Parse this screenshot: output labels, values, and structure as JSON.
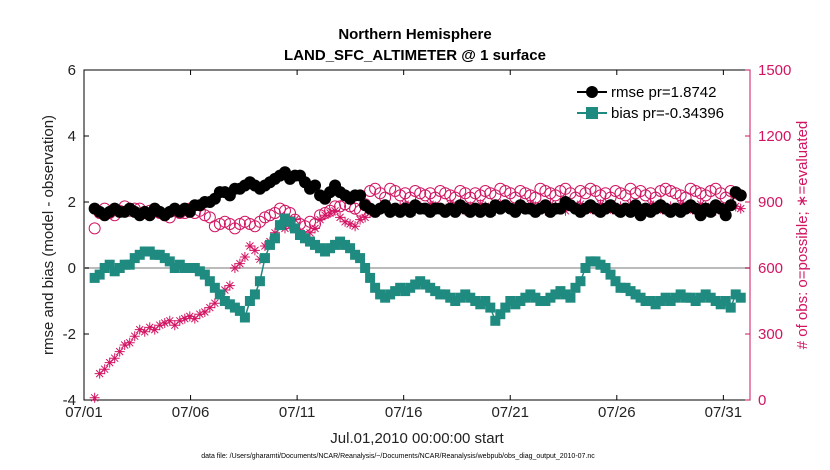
{
  "chart_data": {
    "type": "line",
    "title": [
      "Northern Hemisphere",
      "LAND_SFC_ALTIMETER @ 1 surface"
    ],
    "xlabel": "Jul.01,2010 00:00:00 start",
    "ylabel_left": "rmse and bias (model - observation)",
    "ylabel_right": "# of obs: o=possible; ∗=evaluated",
    "footnote": "data file: /Users/gharamti/Documents/NCAR/Reanalysis/~/Documents/NCAR/Reanalysis/webpub/obs_diag_output_2010-07.nc",
    "x_ticks": [
      "07/01",
      "07/06",
      "07/11",
      "07/16",
      "07/21",
      "07/26",
      "07/31"
    ],
    "x_tick_days": [
      0,
      5,
      10,
      15,
      20,
      25,
      30
    ],
    "xlim_days": [
      0,
      31.25
    ],
    "ylim_left": [
      -4,
      6
    ],
    "y_ticks_left": [
      "-4",
      "-2",
      "0",
      "2",
      "4",
      "6"
    ],
    "ylim_right": [
      0,
      1500
    ],
    "y_ticks_right": [
      "0",
      "300",
      "600",
      "900",
      "1200",
      "1500"
    ],
    "zero_line": 0,
    "grid": false,
    "legend_position": "top-right",
    "colors": {
      "rmse": "#000000",
      "bias": "#1f8a80",
      "counts": "#d21462",
      "zero": "#bbbbbb"
    },
    "series": [
      {
        "name": "rmse pr=1.8742",
        "axis": "left",
        "marker": "circle",
        "values": [
          1.8,
          1.7,
          1.6,
          1.7,
          1.8,
          1.7,
          1.7,
          1.8,
          1.7,
          1.6,
          1.7,
          1.6,
          1.8,
          1.7,
          1.6,
          1.7,
          1.8,
          1.7,
          1.8,
          1.7,
          1.9,
          1.9,
          2.0,
          2.0,
          2.1,
          2.3,
          2.3,
          2.2,
          2.4,
          2.4,
          2.5,
          2.6,
          2.5,
          2.4,
          2.5,
          2.6,
          2.7,
          2.8,
          2.9,
          2.7,
          2.8,
          2.8,
          2.6,
          2.4,
          2.5,
          2.2,
          2.1,
          2.3,
          2.5,
          2.3,
          2.2,
          2.1,
          2.2,
          2.2,
          1.9,
          1.8,
          1.7,
          1.8,
          1.9,
          1.7,
          1.8,
          1.7,
          1.8,
          1.7,
          1.9,
          1.8,
          1.8,
          1.7,
          1.8,
          1.8,
          1.7,
          1.8,
          1.7,
          1.9,
          1.8,
          1.7,
          1.8,
          1.7,
          1.8,
          1.7,
          1.9,
          1.8,
          1.9,
          1.8,
          1.7,
          1.9,
          1.8,
          1.8,
          1.7,
          1.8,
          1.9,
          1.7,
          1.8,
          1.8,
          2.0,
          1.9,
          1.8,
          1.7,
          1.8,
          1.9,
          1.8,
          1.7,
          1.8,
          1.9,
          1.8,
          1.7,
          1.8,
          1.7,
          1.9,
          1.6,
          1.8,
          1.7,
          1.8,
          1.9,
          1.8,
          1.7,
          1.8,
          1.7,
          1.8,
          1.9,
          1.8,
          1.6,
          1.8,
          1.7,
          1.9,
          1.8,
          1.6,
          1.9,
          2.3,
          2.2
        ]
      },
      {
        "name": "bias pr=-0.34396",
        "axis": "left",
        "marker": "square",
        "values": [
          -0.3,
          -0.2,
          0.0,
          0.1,
          -0.1,
          0.0,
          0.1,
          0.1,
          0.3,
          0.4,
          0.5,
          0.5,
          0.4,
          0.4,
          0.3,
          0.2,
          0.0,
          0.1,
          0.0,
          0.0,
          0.0,
          -0.1,
          -0.2,
          -0.4,
          -0.6,
          -0.8,
          -1.0,
          -1.1,
          -1.2,
          -1.3,
          -1.5,
          -1.0,
          -0.8,
          -0.4,
          0.3,
          0.7,
          0.9,
          1.3,
          1.5,
          1.4,
          1.2,
          1.0,
          0.9,
          0.8,
          0.7,
          0.6,
          0.5,
          0.6,
          0.7,
          0.8,
          0.7,
          0.6,
          0.4,
          0.3,
          0.0,
          -0.3,
          -0.6,
          -0.8,
          -0.9,
          -0.8,
          -0.7,
          -0.6,
          -0.7,
          -0.6,
          -0.5,
          -0.4,
          -0.5,
          -0.6,
          -0.7,
          -0.8,
          -0.8,
          -0.9,
          -1.0,
          -0.9,
          -0.8,
          -0.9,
          -1.0,
          -1.1,
          -1.0,
          -1.2,
          -1.6,
          -1.4,
          -1.2,
          -1.0,
          -1.1,
          -1.0,
          -0.9,
          -0.8,
          -0.9,
          -1.0,
          -1.0,
          -0.9,
          -0.8,
          -0.7,
          -0.8,
          -0.9,
          -0.6,
          -0.4,
          0.0,
          0.2,
          0.2,
          0.1,
          0.0,
          -0.2,
          -0.4,
          -0.6,
          -0.6,
          -0.7,
          -0.8,
          -0.9,
          -1.0,
          -1.0,
          -1.1,
          -1.0,
          -0.9,
          -1.0,
          -0.9,
          -0.8,
          -0.9,
          -0.9,
          -1.0,
          -0.9,
          -0.8,
          -0.9,
          -1.0,
          -1.1,
          -1.0,
          -1.2,
          -0.8,
          -0.9
        ]
      },
      {
        "name": "possible",
        "axis": "right",
        "marker": "open-circle",
        "values": [
          780,
          850,
          870,
          850,
          840,
          860,
          880,
          860,
          870,
          870,
          850,
          860,
          860,
          850,
          840,
          830,
          860,
          850,
          850,
          870,
          850,
          860,
          840,
          830,
          790,
          800,
          810,
          800,
          780,
          800,
          810,
          800,
          790,
          810,
          830,
          840,
          850,
          870,
          860,
          850,
          820,
          800,
          790,
          810,
          800,
          840,
          850,
          860,
          880,
          880,
          890,
          880,
          870,
          860,
          890,
          950,
          960,
          940,
          920,
          960,
          950,
          930,
          940,
          920,
          950,
          940,
          930,
          940,
          920,
          950,
          940,
          930,
          920,
          950,
          940,
          920,
          940,
          930,
          950,
          940,
          930,
          960,
          950,
          940,
          920,
          950,
          940,
          930,
          920,
          960,
          950,
          940,
          930,
          950,
          960,
          940,
          920,
          950,
          940,
          960,
          950,
          930,
          940,
          920,
          950,
          940,
          930,
          960,
          940,
          950,
          930,
          940,
          920,
          950,
          960,
          950,
          940,
          930,
          920,
          960,
          950,
          940,
          930,
          950,
          960,
          940,
          920,
          950,
          940,
          930
        ]
      },
      {
        "name": "evaluated",
        "axis": "right",
        "marker": "asterisk",
        "values": [
          10,
          120,
          140,
          170,
          190,
          220,
          250,
          260,
          290,
          320,
          310,
          330,
          320,
          340,
          350,
          360,
          340,
          360,
          370,
          380,
          370,
          390,
          400,
          420,
          440,
          480,
          500,
          520,
          600,
          620,
          650,
          700,
          680,
          640,
          700,
          720,
          760,
          800,
          780,
          790,
          820,
          760,
          740,
          760,
          780,
          820,
          840,
          850,
          860,
          830,
          810,
          800,
          790,
          820,
          830,
          850,
          860,
          870,
          880,
          870,
          860,
          880,
          890,
          870,
          860,
          880,
          870,
          890,
          880,
          870,
          860,
          890,
          880,
          870,
          860,
          880,
          870,
          890,
          880,
          870,
          860,
          890,
          880,
          870,
          860,
          880,
          870,
          890,
          880,
          870,
          860,
          890,
          880,
          870,
          860,
          880,
          870,
          890,
          880,
          870,
          860,
          890,
          880,
          870,
          860,
          880,
          870,
          890,
          880,
          870,
          860,
          890,
          880,
          870,
          860,
          880,
          870,
          890,
          880,
          870,
          860,
          890,
          880,
          870,
          860,
          880,
          870,
          890,
          880,
          870
        ]
      }
    ]
  }
}
